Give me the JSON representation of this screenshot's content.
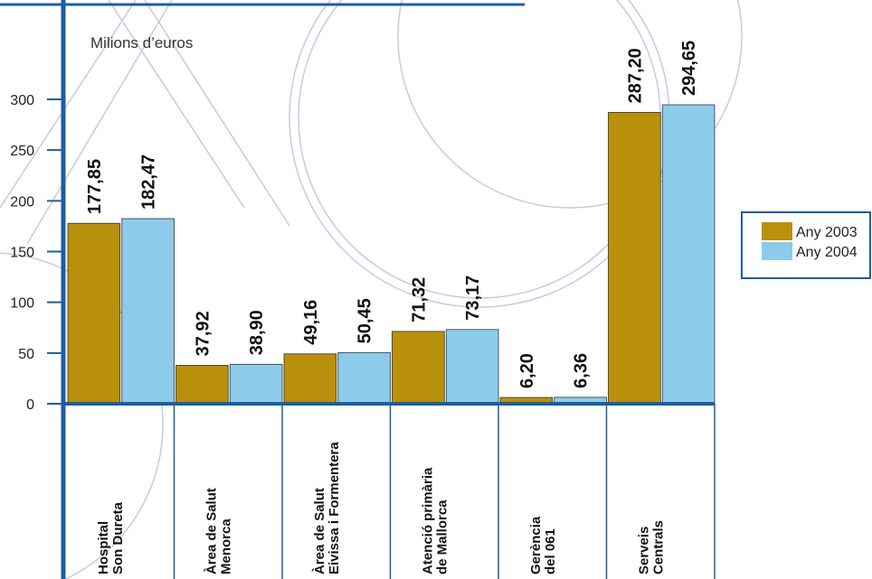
{
  "chart_data": {
    "type": "bar",
    "unit_label": "Milions d’euros",
    "categories": [
      [
        "Hospital",
        "Son Dureta"
      ],
      [
        "Àrea de Salut",
        "Menorca"
      ],
      [
        "Àrea de Salut",
        "Eivissa i Formentera"
      ],
      [
        "Atenció primària",
        "de Mallorca"
      ],
      [
        "Gerència",
        "del 061"
      ],
      [
        "Serveis",
        "Centrals"
      ]
    ],
    "series": [
      {
        "name": "Any 2003",
        "color": "#b8900c",
        "values": [
          177.85,
          37.92,
          49.16,
          71.32,
          6.2,
          287.2
        ],
        "value_labels": [
          "177,85",
          "37,92",
          "49,16",
          "71,32",
          "6,20",
          "287,20"
        ]
      },
      {
        "name": "Any 2004",
        "color": "#8dcbeb",
        "values": [
          182.47,
          38.9,
          50.45,
          73.17,
          6.36,
          294.65
        ],
        "value_labels": [
          "182,47",
          "38,90",
          "50,45",
          "73,17",
          "6,36",
          "294,65"
        ]
      }
    ],
    "ylim": [
      0,
      300
    ],
    "yticks": [
      0,
      50,
      100,
      150,
      200,
      250,
      300
    ],
    "legend": "right"
  }
}
